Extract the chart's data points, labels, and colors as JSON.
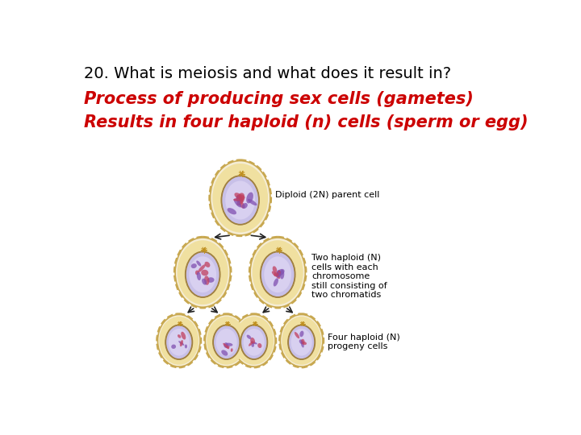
{
  "title": "20. What is meiosis and what does it result in?",
  "title_color": "#000000",
  "title_fontsize": 14,
  "line1": "Process of producing sex cells (gametes)",
  "line1_color": "#cc0000",
  "line1_fontsize": 15,
  "line2": "Results in four haploid (n) cells (sperm or egg)",
  "line2_color": "#cc0000",
  "line2_fontsize": 15,
  "label_diploid": "Diploid (2N) parent cell",
  "label_two": "Two haploid (N)\ncells with each\nchromosome\nstill consisting of\ntwo chromatids",
  "label_four": "Four haploid (N)\nprogeny cells",
  "bg_color": "#ffffff",
  "cell_outer_color": "#c8a850",
  "cell_mid_color": "#f0e0a0",
  "cell_inner_color": "#f5edd5",
  "nucleus_ring_color": "#a08040",
  "nucleus_outer_color": "#c8c0e8",
  "nucleus_inner_color": "#d8d0f0",
  "chromatin_color1": "#8050b0",
  "chromatin_color2": "#c04060",
  "centriole_color": "#c09020",
  "arrow_color": "#222222"
}
